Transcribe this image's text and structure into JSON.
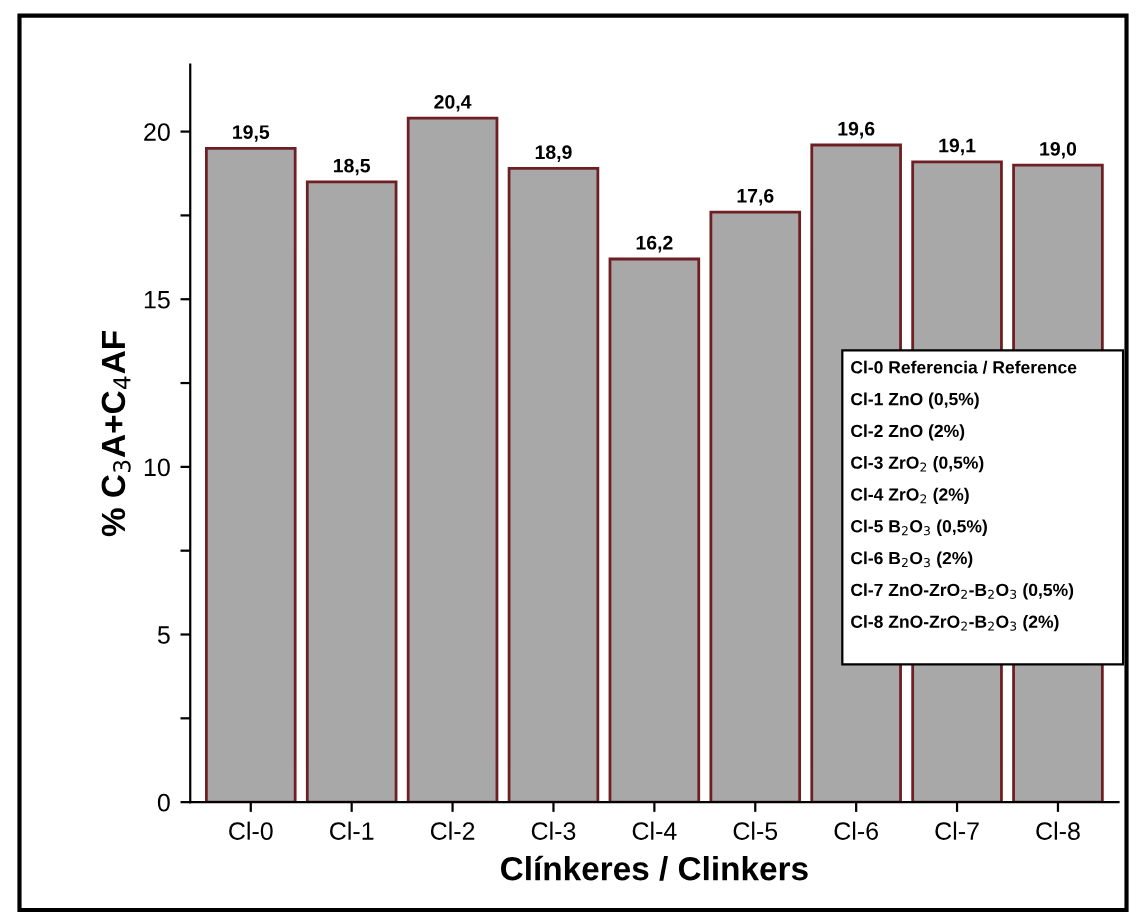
{
  "chart_data": {
    "type": "bar",
    "categories": [
      "Cl-0",
      "Cl-1",
      "Cl-2",
      "Cl-3",
      "Cl-4",
      "Cl-5",
      "Cl-6",
      "Cl-7",
      "Cl-8"
    ],
    "values": [
      19.5,
      18.5,
      20.4,
      18.9,
      16.2,
      17.6,
      19.6,
      19.1,
      19.0
    ],
    "value_labels": [
      "19,5",
      "18,5",
      "20,4",
      "18,9",
      "16,2",
      "17,6",
      "19,6",
      "19,1",
      "19,0"
    ],
    "color": "#a8a8a8",
    "xlabel": "Clínkeres / Clinkers",
    "ylabel": "% C$_{3}$A+C$_{4}$AF",
    "ylim": [
      0,
      22
    ],
    "yticks": [
      0,
      {
        "value": 2.5,
        "label": null
      },
      5,
      {
        "value": 7.5,
        "label": null
      },
      10,
      {
        "value": 12.5,
        "label": null
      },
      15,
      {
        "value": 17.5,
        "label": null
      },
      20
    ],
    "grid": false,
    "annotations": [
      "Cl-0 Referencia / Reference",
      "Cl-1 ZnO (0,5%)",
      "Cl-2 ZnO (2%)",
      "Cl-3 ZrO$_{2}$ (0,5%)",
      "Cl-4 ZrO$_{2}$ (2%)",
      "Cl-5 B$_{2}$O$_{3}$ (0,5%)",
      "Cl-6 B$_{2}$O$_{3}$ (2%)",
      "Cl-7 ZnO-ZrO$_{2}$-B$_{2}$O$_{3}$ (0,5%)",
      "Cl-8 ZnO-ZrO$_{2}$-B$_{2}$O$_{3}$ (2%)"
    ]
  }
}
